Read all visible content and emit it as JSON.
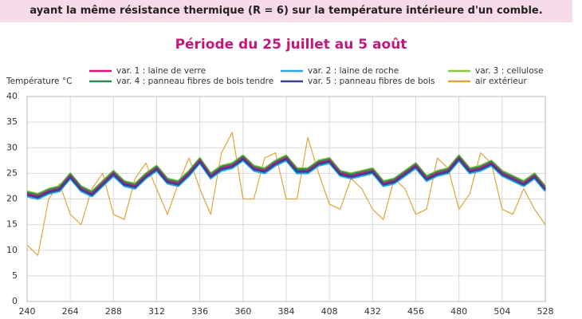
{
  "chart_data": {
    "type": "line",
    "header": "ayant la même résistance thermique (R = 6) sur la température intérieure d'un comble.",
    "title": "Période du 25 juillet au 5 août",
    "y_label": "Température °C",
    "x": [
      240,
      246,
      252,
      258,
      264,
      270,
      276,
      282,
      288,
      294,
      300,
      306,
      312,
      318,
      324,
      330,
      336,
      342,
      348,
      354,
      360,
      366,
      372,
      378,
      384,
      390,
      396,
      402,
      408,
      414,
      420,
      426,
      432,
      438,
      444,
      450,
      456,
      462,
      468,
      474,
      480,
      486,
      492,
      498,
      504,
      510,
      516,
      522,
      528
    ],
    "series": [
      {
        "name": "air extérieur",
        "color": "#e0a43a",
        "values": [
          11,
          9,
          20,
          23,
          17,
          15,
          22,
          25,
          17,
          16,
          24,
          27,
          22,
          17,
          23,
          28,
          22,
          17,
          29,
          33,
          20,
          20,
          28,
          29,
          20,
          20,
          32,
          25,
          19,
          18,
          24,
          22,
          18,
          16,
          24,
          22,
          17,
          18,
          28,
          26,
          18,
          21,
          29,
          27,
          18,
          17,
          22,
          18,
          15
        ]
      },
      {
        "name": "var. 2 : laine de roche",
        "color": "#2aa6e0",
        "values": [
          20.5,
          20,
          21,
          21.5,
          24,
          21.5,
          20.5,
          22.5,
          24.5,
          22.5,
          22,
          24,
          25.5,
          23,
          22.5,
          24.5,
          27,
          24,
          25.5,
          26,
          27.5,
          25.5,
          25,
          26.5,
          27.5,
          25,
          25,
          26.5,
          27,
          24.5,
          24,
          24.5,
          25,
          22.5,
          23,
          24.5,
          26,
          23.5,
          24.5,
          25,
          27.5,
          25,
          25.5,
          26.5,
          24.5,
          23.5,
          22.5,
          24,
          21.5
        ]
      },
      {
        "name": "var. 3 : cellulose",
        "color": "#8cc63e",
        "values": [
          21.5,
          21,
          22,
          22.5,
          25,
          22.5,
          21.5,
          23.5,
          25.5,
          23.5,
          23,
          25,
          26.5,
          24,
          23.5,
          25.5,
          28,
          25,
          26.5,
          27,
          28.5,
          26.5,
          26,
          27.5,
          28.5,
          26,
          26,
          27.5,
          28,
          25.5,
          25,
          25.5,
          26,
          23.5,
          24,
          25.5,
          27,
          24.5,
          25.5,
          26,
          28.5,
          26,
          26.5,
          27.5,
          25.5,
          24.5,
          23.5,
          25,
          22.5
        ]
      },
      {
        "name": "var. 4 :  panneau fibres de bois tendre",
        "color": "#2e8b57",
        "values": [
          21.3,
          20.8,
          21.8,
          22.3,
          24.8,
          22.3,
          21.3,
          23.3,
          25.3,
          23.3,
          22.8,
          24.8,
          26.3,
          23.8,
          23.3,
          25.3,
          27.8,
          24.8,
          26.3,
          26.8,
          28.3,
          26.3,
          25.8,
          27.3,
          28.3,
          25.8,
          25.8,
          27.3,
          27.8,
          25.3,
          24.8,
          25.3,
          25.8,
          23.3,
          23.8,
          25.3,
          26.8,
          24.3,
          25.3,
          25.8,
          28.3,
          25.8,
          26.3,
          27.3,
          25.3,
          24.3,
          23.3,
          24.8,
          22.3
        ]
      },
      {
        "name": "var. 1 : laine de verre",
        "color": "#d6127a",
        "values": [
          21,
          20.5,
          21.5,
          22,
          24.5,
          22,
          21,
          23,
          25,
          23,
          22.5,
          24.5,
          26,
          23.5,
          23,
          25,
          27.5,
          24.5,
          26,
          26.5,
          28,
          26,
          25.5,
          27,
          28,
          25.5,
          25.5,
          27,
          27.5,
          25,
          24.5,
          25,
          25.5,
          23,
          23.5,
          25,
          26.5,
          24,
          25,
          25.5,
          28,
          25.5,
          26,
          27,
          25,
          24,
          23,
          24.5,
          22
        ]
      },
      {
        "name": "var. 5 :  panneau fibres de bois",
        "color": "#3a3f8f",
        "values": [
          20.8,
          20.3,
          21.3,
          21.8,
          24.3,
          21.8,
          20.8,
          22.8,
          24.8,
          22.8,
          22.3,
          24.3,
          25.8,
          23.3,
          22.8,
          24.8,
          27.3,
          24.3,
          25.8,
          26.3,
          27.8,
          25.8,
          25.3,
          26.8,
          27.8,
          25.3,
          25.3,
          26.8,
          27.3,
          24.8,
          24.3,
          24.8,
          25.3,
          22.8,
          23.3,
          24.8,
          26.3,
          23.8,
          24.8,
          25.3,
          27.8,
          25.3,
          25.8,
          26.8,
          24.8,
          23.8,
          22.8,
          24.3,
          21.8
        ]
      }
    ],
    "xlim": [
      240,
      528
    ],
    "ylim": [
      0,
      40
    ],
    "xticks": [
      240,
      264,
      288,
      312,
      336,
      360,
      384,
      408,
      432,
      456,
      480,
      504,
      528
    ],
    "yticks": [
      0,
      5,
      10,
      15,
      20,
      25,
      30,
      35,
      40
    ],
    "grid": true
  }
}
